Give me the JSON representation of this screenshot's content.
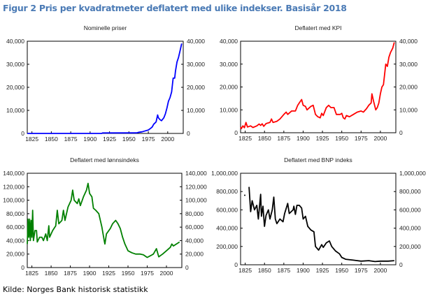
{
  "figure_title": "Figur 2 Pris per kvadratmeter deflatert med ulike indekser. Basisår 2018",
  "source": "Kilde: Norges Bank historisk statistikk",
  "chart_data": [
    {
      "type": "line",
      "title": "Nominelle priser",
      "color": "#0000ff",
      "xlim": [
        1819,
        2020
      ],
      "xticks": [
        1825,
        1850,
        1875,
        1900,
        1925,
        1950,
        1975,
        2000
      ],
      "ylim": [
        0,
        40000
      ],
      "yticks": [
        0,
        10000,
        20000,
        30000,
        40000
      ],
      "ytick_labels": [
        "0",
        "10,000",
        "20,000",
        "30,000",
        "40,000"
      ],
      "points": [
        [
          1819,
          0
        ],
        [
          1915,
          0
        ],
        [
          1916,
          200
        ],
        [
          1960,
          250
        ],
        [
          1963,
          500
        ],
        [
          1967,
          700
        ],
        [
          1970,
          1000
        ],
        [
          1975,
          1500
        ],
        [
          1978,
          2200
        ],
        [
          1980,
          2800
        ],
        [
          1982,
          4000
        ],
        [
          1985,
          5000
        ],
        [
          1987,
          8000
        ],
        [
          1988,
          6800
        ],
        [
          1990,
          6000
        ],
        [
          1992,
          5500
        ],
        [
          1995,
          6800
        ],
        [
          1997,
          8500
        ],
        [
          1999,
          11000
        ],
        [
          2001,
          14000
        ],
        [
          2003,
          15500
        ],
        [
          2005,
          18000
        ],
        [
          2006,
          21000
        ],
        [
          2007,
          24000
        ],
        [
          2009,
          24000
        ],
        [
          2010,
          27000
        ],
        [
          2012,
          31000
        ],
        [
          2014,
          33000
        ],
        [
          2016,
          36000
        ],
        [
          2018,
          39000
        ]
      ]
    },
    {
      "type": "line",
      "title": "Deflatert med KPI",
      "color": "#ff0000",
      "xlim": [
        1819,
        2020
      ],
      "xticks": [
        1825,
        1850,
        1875,
        1900,
        1925,
        1950,
        1975,
        2000
      ],
      "ylim": [
        0,
        40000
      ],
      "yticks": [
        0,
        10000,
        20000,
        30000,
        40000
      ],
      "ytick_labels": [
        "0",
        "10,000",
        "20,000",
        "30,000",
        "40,000"
      ],
      "points": [
        [
          1819,
          2500
        ],
        [
          1820,
          1800
        ],
        [
          1822,
          3000
        ],
        [
          1824,
          2200
        ],
        [
          1826,
          4500
        ],
        [
          1828,
          2500
        ],
        [
          1832,
          3000
        ],
        [
          1835,
          2300
        ],
        [
          1840,
          3000
        ],
        [
          1843,
          3800
        ],
        [
          1845,
          3200
        ],
        [
          1847,
          3900
        ],
        [
          1849,
          2800
        ],
        [
          1852,
          4000
        ],
        [
          1857,
          4500
        ],
        [
          1859,
          6000
        ],
        [
          1861,
          4500
        ],
        [
          1866,
          5000
        ],
        [
          1870,
          6000
        ],
        [
          1875,
          8000
        ],
        [
          1878,
          9000
        ],
        [
          1880,
          8000
        ],
        [
          1885,
          9500
        ],
        [
          1890,
          9500
        ],
        [
          1893,
          12000
        ],
        [
          1896,
          13500
        ],
        [
          1898,
          14500
        ],
        [
          1900,
          12000
        ],
        [
          1903,
          11500
        ],
        [
          1905,
          10000
        ],
        [
          1910,
          11500
        ],
        [
          1913,
          12000
        ],
        [
          1916,
          8000
        ],
        [
          1919,
          7000
        ],
        [
          1922,
          6500
        ],
        [
          1924,
          8500
        ],
        [
          1926,
          7500
        ],
        [
          1930,
          11000
        ],
        [
          1933,
          12000
        ],
        [
          1936,
          11000
        ],
        [
          1940,
          11000
        ],
        [
          1943,
          8000
        ],
        [
          1948,
          8000
        ],
        [
          1950,
          8500
        ],
        [
          1952,
          6500
        ],
        [
          1954,
          6000
        ],
        [
          1956,
          7500
        ],
        [
          1960,
          7000
        ],
        [
          1965,
          8000
        ],
        [
          1970,
          9000
        ],
        [
          1975,
          9500
        ],
        [
          1978,
          9000
        ],
        [
          1982,
          10500
        ],
        [
          1985,
          12000
        ],
        [
          1988,
          13000
        ],
        [
          1989,
          17000
        ],
        [
          1991,
          14000
        ],
        [
          1994,
          10000
        ],
        [
          1996,
          11000
        ],
        [
          1998,
          13000
        ],
        [
          2000,
          17000
        ],
        [
          2002,
          20000
        ],
        [
          2004,
          21000
        ],
        [
          2006,
          27000
        ],
        [
          2007,
          30000
        ],
        [
          2009,
          29000
        ],
        [
          2011,
          33000
        ],
        [
          2013,
          35000
        ],
        [
          2016,
          37000
        ],
        [
          2018,
          39500
        ]
      ]
    },
    {
      "type": "line",
      "title": "Deflatert med lønnsindeks",
      "color": "#008000",
      "xlim": [
        1819,
        2020
      ],
      "xticks": [
        1825,
        1850,
        1875,
        1900,
        1925,
        1950,
        1975,
        2000
      ],
      "ylim": [
        0,
        140000
      ],
      "yticks": [
        0,
        20000,
        40000,
        60000,
        80000,
        100000,
        120000,
        140000
      ],
      "ytick_labels": [
        "0",
        "20,000",
        "40,000",
        "60,000",
        "80,000",
        "100,000",
        "120,000",
        "140,000"
      ],
      "points": [
        [
          1819,
          35000
        ],
        [
          1820,
          72000
        ],
        [
          1821,
          45000
        ],
        [
          1822,
          72000
        ],
        [
          1823,
          40000
        ],
        [
          1824,
          70000
        ],
        [
          1825,
          45000
        ],
        [
          1826,
          85000
        ],
        [
          1827,
          40000
        ],
        [
          1829,
          55000
        ],
        [
          1831,
          55000
        ],
        [
          1832,
          38000
        ],
        [
          1835,
          45000
        ],
        [
          1838,
          45000
        ],
        [
          1840,
          40000
        ],
        [
          1843,
          50000
        ],
        [
          1845,
          40000
        ],
        [
          1847,
          62000
        ],
        [
          1848,
          45000
        ],
        [
          1852,
          55000
        ],
        [
          1856,
          62000
        ],
        [
          1858,
          85000
        ],
        [
          1860,
          65000
        ],
        [
          1864,
          70000
        ],
        [
          1866,
          85000
        ],
        [
          1868,
          70000
        ],
        [
          1872,
          90000
        ],
        [
          1876,
          100000
        ],
        [
          1878,
          115000
        ],
        [
          1880,
          100000
        ],
        [
          1884,
          95000
        ],
        [
          1886,
          102000
        ],
        [
          1888,
          92000
        ],
        [
          1892,
          105000
        ],
        [
          1896,
          115000
        ],
        [
          1898,
          125000
        ],
        [
          1900,
          110000
        ],
        [
          1903,
          105000
        ],
        [
          1905,
          88000
        ],
        [
          1908,
          85000
        ],
        [
          1912,
          80000
        ],
        [
          1916,
          60000
        ],
        [
          1919,
          40000
        ],
        [
          1920,
          35000
        ],
        [
          1922,
          50000
        ],
        [
          1927,
          58000
        ],
        [
          1930,
          65000
        ],
        [
          1934,
          70000
        ],
        [
          1937,
          65000
        ],
        [
          1940,
          58000
        ],
        [
          1943,
          45000
        ],
        [
          1946,
          35000
        ],
        [
          1950,
          25000
        ],
        [
          1955,
          22000
        ],
        [
          1960,
          20000
        ],
        [
          1966,
          20000
        ],
        [
          1970,
          19000
        ],
        [
          1975,
          15000
        ],
        [
          1980,
          18000
        ],
        [
          1983,
          20000
        ],
        [
          1987,
          28000
        ],
        [
          1990,
          16000
        ],
        [
          1995,
          20000
        ],
        [
          2000,
          25000
        ],
        [
          2005,
          30000
        ],
        [
          2007,
          35000
        ],
        [
          2009,
          32000
        ],
        [
          2013,
          35000
        ],
        [
          2017,
          38000
        ]
      ]
    },
    {
      "type": "line",
      "title": "Deflatert med BNP indeks",
      "color": "#000000",
      "xlim": [
        1819,
        2020
      ],
      "xticks": [
        1825,
        1850,
        1875,
        1900,
        1925,
        1950,
        1975,
        2000
      ],
      "ylim": [
        0,
        1000000
      ],
      "yticks": [
        0,
        200000,
        400000,
        600000,
        800000,
        1000000
      ],
      "ytick_labels": [
        "0",
        "200,000",
        "400,000",
        "600,000",
        "800,000",
        "1,000,000"
      ],
      "isolated_points": [
        [
          1819,
          760000
        ]
      ],
      "points": [
        [
          1830,
          850000
        ],
        [
          1832,
          580000
        ],
        [
          1834,
          700000
        ],
        [
          1837,
          600000
        ],
        [
          1840,
          650000
        ],
        [
          1842,
          500000
        ],
        [
          1844,
          680000
        ],
        [
          1845,
          770000
        ],
        [
          1846,
          530000
        ],
        [
          1848,
          640000
        ],
        [
          1850,
          420000
        ],
        [
          1852,
          540000
        ],
        [
          1855,
          600000
        ],
        [
          1857,
          500000
        ],
        [
          1860,
          600000
        ],
        [
          1862,
          740000
        ],
        [
          1864,
          500000
        ],
        [
          1866,
          450000
        ],
        [
          1870,
          500000
        ],
        [
          1874,
          470000
        ],
        [
          1876,
          560000
        ],
        [
          1880,
          670000
        ],
        [
          1882,
          560000
        ],
        [
          1887,
          600000
        ],
        [
          1888,
          640000
        ],
        [
          1890,
          550000
        ],
        [
          1892,
          650000
        ],
        [
          1895,
          650000
        ],
        [
          1898,
          620000
        ],
        [
          1900,
          500000
        ],
        [
          1903,
          530000
        ],
        [
          1906,
          420000
        ],
        [
          1910,
          380000
        ],
        [
          1914,
          360000
        ],
        [
          1916,
          200000
        ],
        [
          1920,
          160000
        ],
        [
          1924,
          220000
        ],
        [
          1926,
          190000
        ],
        [
          1930,
          240000
        ],
        [
          1934,
          260000
        ],
        [
          1937,
          200000
        ],
        [
          1942,
          150000
        ],
        [
          1947,
          120000
        ],
        [
          1950,
          80000
        ],
        [
          1955,
          60000
        ],
        [
          1965,
          50000
        ],
        [
          1975,
          40000
        ],
        [
          1985,
          45000
        ],
        [
          1993,
          35000
        ],
        [
          2000,
          40000
        ],
        [
          2010,
          40000
        ],
        [
          2018,
          45000
        ]
      ]
    }
  ]
}
